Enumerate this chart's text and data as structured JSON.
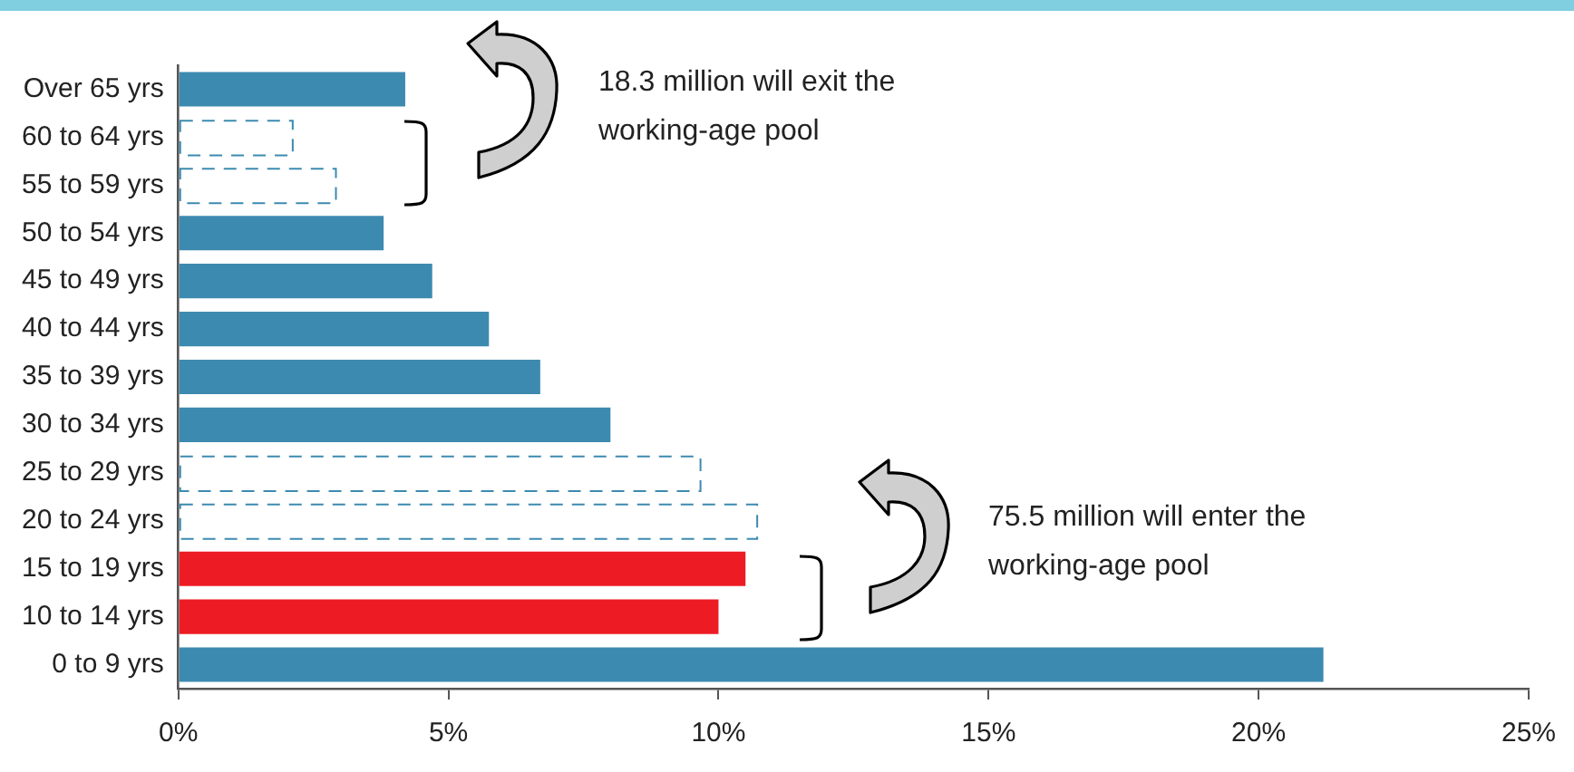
{
  "chart_data": {
    "type": "bar",
    "orientation": "horizontal",
    "categories": [
      "Over 65 yrs",
      "60 to 64 yrs",
      "55 to 59 yrs",
      "50 to 54 yrs",
      "45 to 49 yrs",
      "40 to 44 yrs",
      "35 to 39 yrs",
      "30 to 34 yrs",
      "25 to 29 yrs",
      "20 to 24 yrs",
      "15 to 19 yrs",
      "10 to 14 yrs",
      "0 to 9 yrs"
    ],
    "series": [
      {
        "color": "#3d8ab0",
        "line_style": "solid",
        "values": [
          4.2,
          null,
          null,
          3.8,
          4.7,
          5.75,
          6.7,
          8.0,
          null,
          null,
          null,
          null,
          21.2
        ]
      },
      {
        "color": "#3d8ab0",
        "line_style": "dashed",
        "values": [
          null,
          2.1,
          2.9,
          null,
          null,
          null,
          null,
          null,
          9.65,
          10.7,
          null,
          null,
          null
        ]
      },
      {
        "color": "#ed1c24",
        "line_style": "solid",
        "values": [
          null,
          null,
          null,
          null,
          null,
          null,
          null,
          null,
          null,
          null,
          10.5,
          10.0,
          null
        ]
      }
    ],
    "xlim": [
      0,
      25
    ],
    "xticks": [
      {
        "value": 0,
        "label": "0%"
      },
      {
        "value": 5,
        "label": "5%"
      },
      {
        "value": 10,
        "label": "10%"
      },
      {
        "value": 15,
        "label": "15%"
      },
      {
        "value": 20,
        "label": "20%"
      },
      {
        "value": 25,
        "label": "25%"
      }
    ],
    "grid": false,
    "legend": false,
    "annotations": [
      "18.3 million will exit the working-age pool",
      "75.5 million will enter the working-age pool"
    ]
  }
}
